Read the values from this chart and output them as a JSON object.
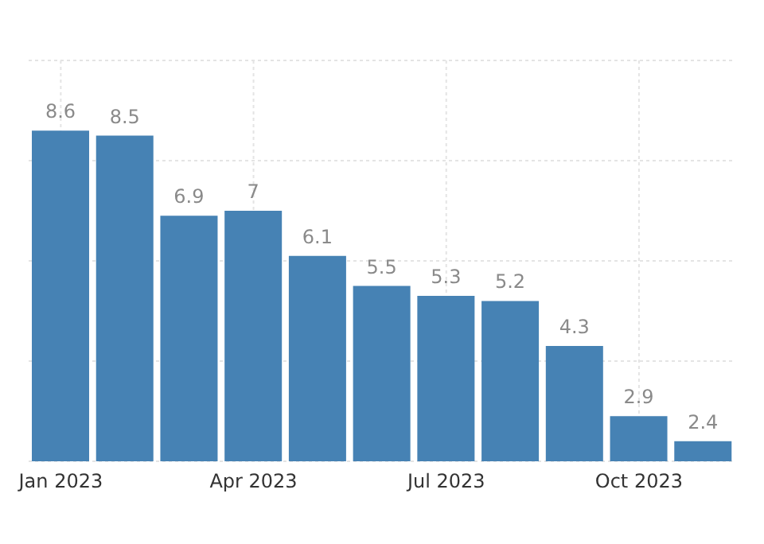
{
  "chart_data": {
    "type": "bar",
    "categories": [
      "Jan 2023",
      null,
      null,
      "Apr 2023",
      null,
      null,
      "Jul 2023",
      null,
      null,
      "Oct 2023",
      null
    ],
    "values": [
      8.6,
      8.5,
      6.9,
      7,
      6.1,
      5.5,
      5.3,
      5.2,
      4.3,
      2.9,
      2.4
    ],
    "color": "#4682b4",
    "data_labels": true,
    "ylim": [
      2,
      10
    ],
    "yticks": [
      {
        "value": 2,
        "label": null
      },
      {
        "value": 4,
        "label": null
      },
      {
        "value": 6,
        "label": null
      },
      {
        "value": 8,
        "label": null
      },
      {
        "value": 10,
        "label": null
      }
    ],
    "tick_labels": "x",
    "grid": true,
    "legend": false
  }
}
